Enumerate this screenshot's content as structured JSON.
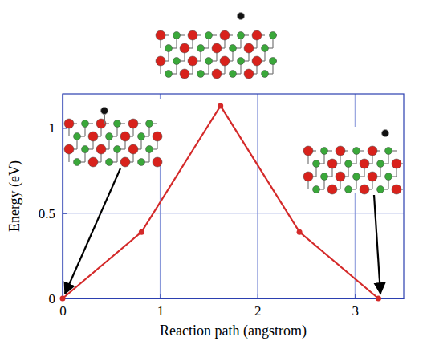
{
  "chart_data": {
    "type": "line",
    "x": [
      0,
      0.81,
      1.62,
      2.43,
      3.24
    ],
    "values": [
      0,
      0.39,
      1.13,
      0.39,
      0
    ],
    "color": "#d42a2a",
    "marker": "circle",
    "xlabel": "Reaction path (angstrom)",
    "ylabel": "Energy (eV)",
    "xlim": [
      0,
      3.5
    ],
    "ylim": [
      0,
      1.2
    ],
    "xticks": [
      0,
      1,
      2,
      3
    ],
    "yticks": [
      0,
      0.5,
      1
    ],
    "grid": true
  }
}
